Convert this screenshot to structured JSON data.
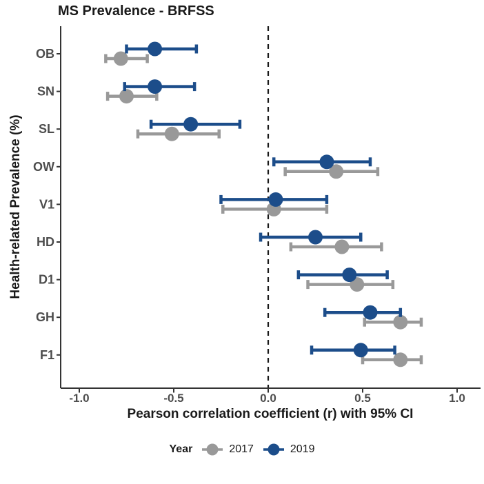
{
  "colors": {
    "series_2017": "#999999",
    "series_2019": "#1C4D8A",
    "axis": "#333333",
    "reference_line": "#1a1a1a",
    "tick_text": "#4d4d4d",
    "title_text": "#1a1a1a",
    "background": "#ffffff"
  },
  "chart_data": {
    "type": "scatter",
    "subtype": "dot-and-whisker forest plot, horizontal",
    "title": "MS Prevalence - BRFSS",
    "xlabel": "Pearson correlation coefficient (r) with 95% CI",
    "ylabel": "Health-related Prevalence (%)",
    "xlim": [
      -1.1,
      1.12
    ],
    "xticks": [
      -1.0,
      -0.5,
      0.0,
      0.5,
      1.0
    ],
    "xtick_labels": [
      "-1.0",
      "-0.5",
      "0.0",
      "0.5",
      "1.0"
    ],
    "reference_line_x": 0.0,
    "grid": "off",
    "categories": [
      "OB",
      "SN",
      "SL",
      "OW",
      "V1",
      "HD",
      "D1",
      "GH",
      "F1"
    ],
    "series": [
      {
        "name": "2017",
        "color": "#999999",
        "values": [
          -0.78,
          -0.75,
          -0.51,
          0.36,
          0.03,
          0.39,
          0.47,
          0.7,
          0.7
        ],
        "ci_low": [
          -0.86,
          -0.85,
          -0.69,
          0.09,
          -0.24,
          0.12,
          0.21,
          0.51,
          0.5
        ],
        "ci_high": [
          -0.64,
          -0.59,
          -0.26,
          0.58,
          0.31,
          0.6,
          0.66,
          0.81,
          0.81
        ]
      },
      {
        "name": "2019",
        "color": "#1C4D8A",
        "values": [
          -0.6,
          -0.6,
          -0.41,
          0.31,
          0.04,
          0.25,
          0.43,
          0.54,
          0.49
        ],
        "ci_low": [
          -0.75,
          -0.76,
          -0.62,
          0.03,
          -0.25,
          -0.04,
          0.16,
          0.3,
          0.23
        ],
        "ci_high": [
          -0.38,
          -0.39,
          -0.15,
          0.54,
          0.31,
          0.49,
          0.63,
          0.7,
          0.67
        ]
      }
    ],
    "legend": {
      "title": "Year",
      "position": "bottom",
      "entries": [
        {
          "label": "2017",
          "color": "#999999"
        },
        {
          "label": "2019",
          "color": "#1C4D8A"
        }
      ]
    }
  }
}
